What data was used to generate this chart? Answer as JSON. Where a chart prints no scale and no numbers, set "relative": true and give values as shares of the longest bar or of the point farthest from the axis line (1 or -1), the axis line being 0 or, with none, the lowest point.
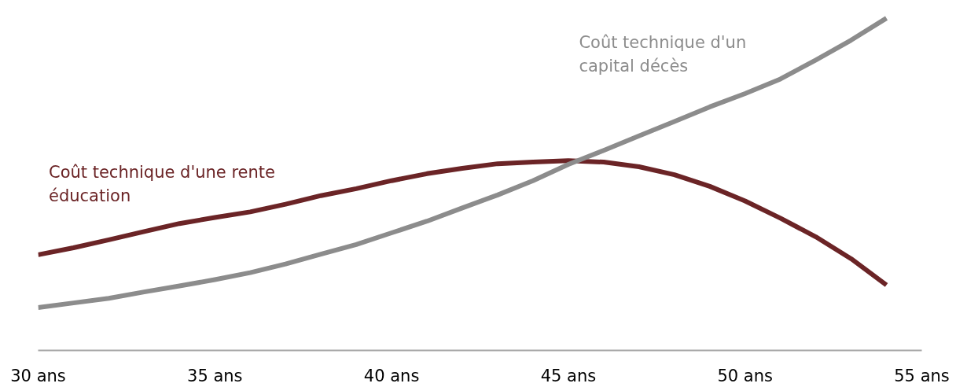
{
  "chart_data": {
    "type": "line",
    "relative": true,
    "x": [
      30,
      31,
      32,
      33,
      34,
      35,
      36,
      37,
      38,
      39,
      40,
      41,
      42,
      43,
      44,
      45,
      46,
      47,
      48,
      49,
      50,
      51,
      52,
      53,
      54
    ],
    "xlim": [
      30,
      55
    ],
    "xticks": [
      {
        "value": 30,
        "label": "30 ans"
      },
      {
        "value": 35,
        "label": "35 ans"
      },
      {
        "value": 40,
        "label": "40 ans"
      },
      {
        "value": 45,
        "label": "45 ans"
      },
      {
        "value": 50,
        "label": "50 ans"
      },
      {
        "value": 55,
        "label": "55 ans"
      }
    ],
    "tick_labels": "x",
    "grid": false,
    "legend": false,
    "marker": "none",
    "line_style": "solid",
    "series": [
      {
        "name": "Coût technique d'une rente éducation",
        "color": "#6b2426",
        "values": [
          0.288,
          0.309,
          0.333,
          0.358,
          0.382,
          0.4,
          0.417,
          0.44,
          0.466,
          0.487,
          0.511,
          0.532,
          0.548,
          0.562,
          0.567,
          0.571,
          0.567,
          0.553,
          0.529,
          0.494,
          0.45,
          0.398,
          0.342,
          0.276,
          0.197
        ]
      },
      {
        "name": "Coût technique d'un capital décès",
        "color": "#8c8c8c",
        "values": [
          0.129,
          0.143,
          0.157,
          0.176,
          0.194,
          0.213,
          0.234,
          0.26,
          0.29,
          0.319,
          0.354,
          0.389,
          0.429,
          0.468,
          0.511,
          0.56,
          0.602,
          0.646,
          0.689,
          0.733,
          0.773,
          0.817,
          0.874,
          0.934,
          1
        ]
      }
    ]
  }
}
